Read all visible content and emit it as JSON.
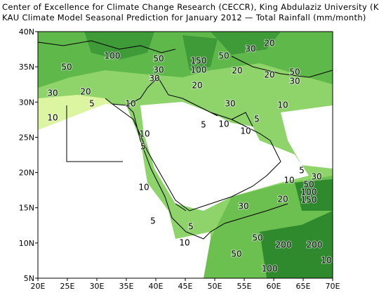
{
  "header": {
    "line1": "Center of Excellence for Climate Change Research (CECCR), King Abdulaziz University (KAU)",
    "line2": "KAU Climate Model Seasonal Prediction for January 2012 — Total Rainfall (mm/month)"
  },
  "map": {
    "lon_ticks": [
      "20E",
      "25E",
      "30E",
      "35E",
      "40E",
      "45E",
      "50E",
      "55E",
      "60E",
      "65E",
      "70E"
    ],
    "lat_ticks": [
      "40N",
      "35N",
      "30N",
      "25N",
      "20N",
      "15N",
      "10N",
      "5N"
    ],
    "contour_labels": [
      "100",
      "50",
      "50",
      "30",
      "30",
      "150",
      "100",
      "50",
      "30",
      "20",
      "20",
      "20",
      "50",
      "30",
      "20",
      "30",
      "20",
      "5",
      "10",
      "30",
      "10",
      "10",
      "5",
      "10",
      "5",
      "10",
      "10",
      "5",
      "5",
      "10",
      "30",
      "50",
      "100",
      "150",
      "20",
      "10",
      "30",
      "5",
      "5",
      "10",
      "50",
      "50",
      "200",
      "200",
      "10",
      "100"
    ]
  }
}
